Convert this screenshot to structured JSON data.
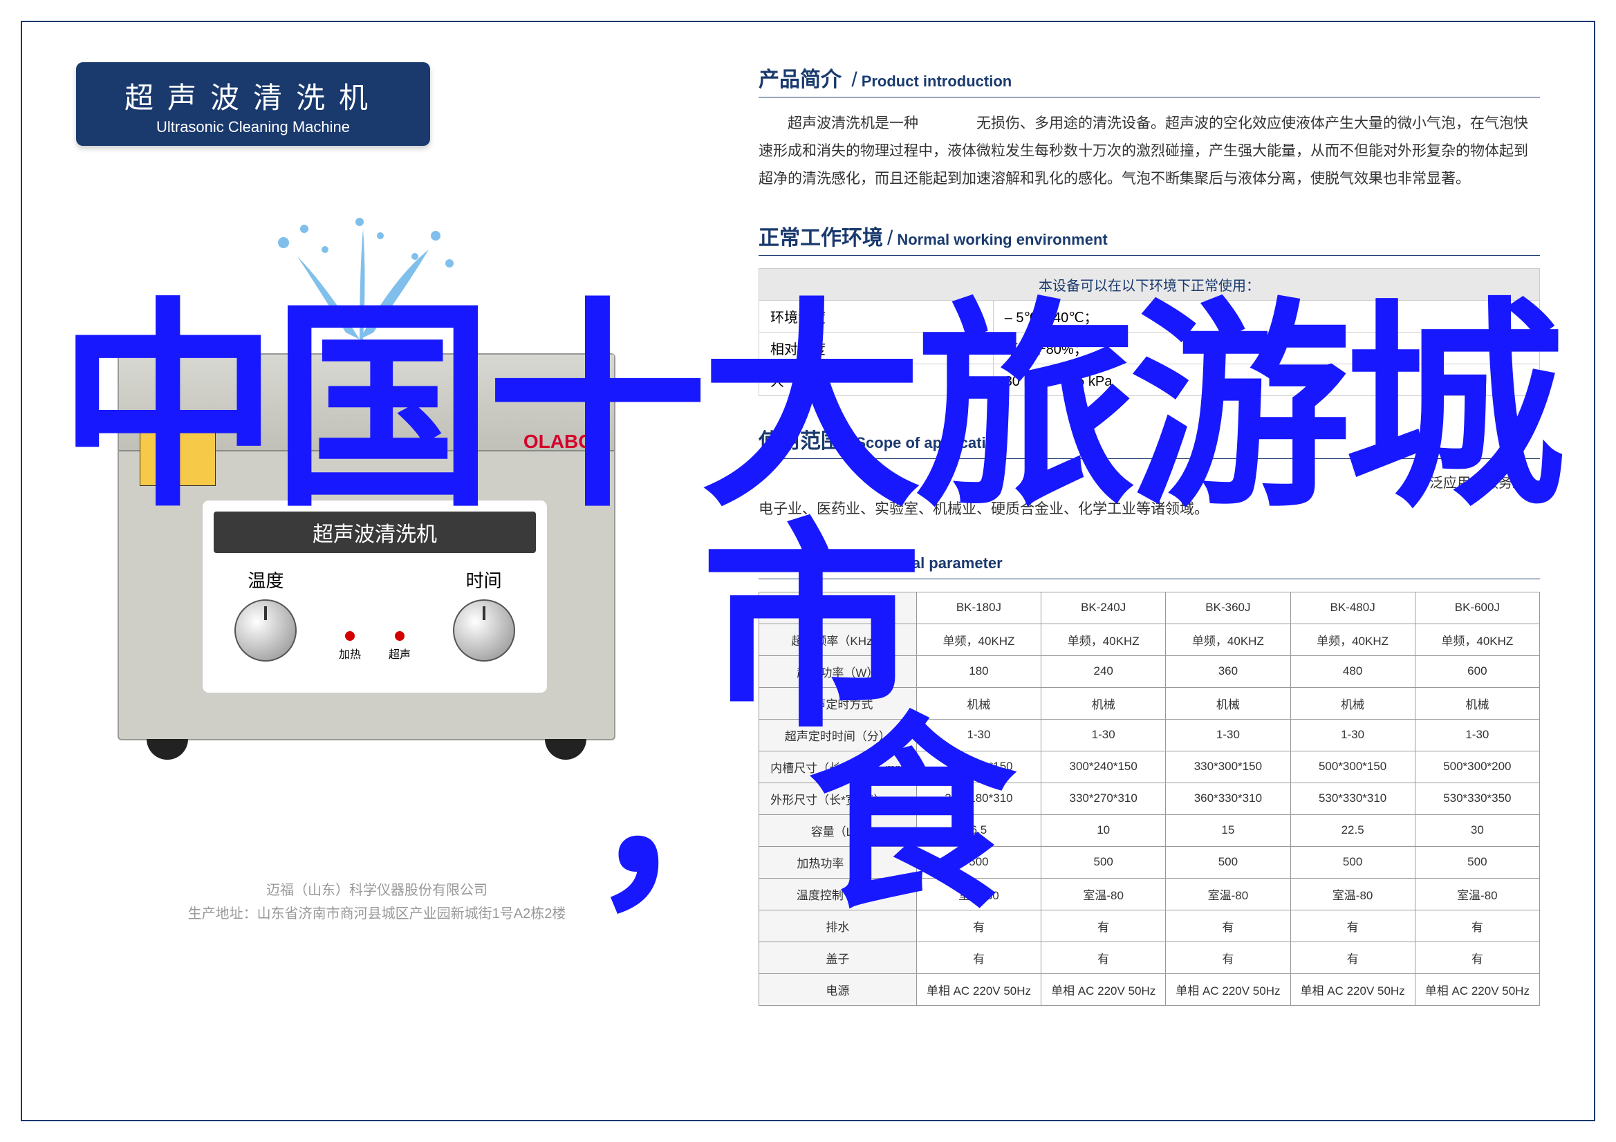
{
  "banner": {
    "title_cn": "超声波清洗机",
    "title_en": "Ultrasonic Cleaning Machine"
  },
  "product_panel": {
    "brand": "OLABO",
    "panel_title": "超声波清洗机",
    "knob1_label": "温度",
    "knob2_label": "时间",
    "led1_label": "加热",
    "led2_label": "超声"
  },
  "footer": {
    "line1": "迈福（山东）科学仪器股份有限公司",
    "line2": "生产地址：山东省济南市商河县城区产业园新城街1号A2栋2楼"
  },
  "intro": {
    "heading_cn": "产品简介",
    "heading_en": "Product introduction",
    "body": "超声波清洗机是一种　　　　无损伤、多用途的清洗设备。超声波的空化效应使液体产生大量的微小气泡，在气泡快速形成和消失的物理过程中，液体微粒发生每秒数十万次的激烈碰撞，产生强大能量，从而不但能对外形复杂的物体起到超净的清洗感化，而且还能起到加速溶解和乳化的感化。气泡不断集聚后与液体分离，使脱气效果也非常显著。"
  },
  "environment": {
    "heading_cn": "正常工作环境",
    "heading_en": "Normal working environment",
    "header_row": "本设备可以在以下环境下正常使用：",
    "rows": [
      {
        "label": "环境温度",
        "value": "– 5℃～40℃；"
      },
      {
        "label": "相对湿度",
        "value": "不大于80%；"
      },
      {
        "label": "大气压力",
        "value": "80 kPa～106 kPa"
      }
    ]
  },
  "scope": {
    "heading_cn": "使用范围",
    "heading_en": "Scope of application",
    "right_text": "广泛应用于服务业、",
    "body": "电子业、医药业、实验室、机械业、硬质合金业、化学工业等诸领域。"
  },
  "specs": {
    "heading_cn": "技术参数",
    "heading_en": "Technical parameter",
    "col_head": "项目",
    "models": [
      "BK-180J",
      "BK-240J",
      "BK-360J",
      "BK-480J",
      "BK-600J"
    ],
    "rows": [
      {
        "label": "超声频率（KHz）",
        "values": [
          "单频，40KHZ",
          "单频，40KHZ",
          "单频，40KHZ",
          "单频，40KHZ",
          "单频，40KHZ"
        ]
      },
      {
        "label": "超声功率（W）",
        "values": [
          "180",
          "240",
          "360",
          "480",
          "600"
        ]
      },
      {
        "label": "超声定时方式",
        "values": [
          "机械",
          "机械",
          "机械",
          "机械",
          "机械"
        ]
      },
      {
        "label": "超声定时时间（分）",
        "values": [
          "1-30",
          "1-30",
          "1-30",
          "1-30",
          "1-30"
        ]
      },
      {
        "label": "内槽尺寸（长*宽*高）mm",
        "values": [
          "300*150*150",
          "300*240*150",
          "330*300*150",
          "500*300*150",
          "500*300*200"
        ]
      },
      {
        "label": "外形尺寸（长*宽*高）mm",
        "values": [
          "330*180*310",
          "330*270*310",
          "360*330*310",
          "530*330*310",
          "530*330*350"
        ]
      },
      {
        "label": "容量（L）",
        "values": [
          "6.5",
          "10",
          "15",
          "22.5",
          "30"
        ]
      },
      {
        "label": "加热功率（W）",
        "values": [
          "500",
          "500",
          "500",
          "500",
          "500"
        ]
      },
      {
        "label": "温度控制（℃）",
        "values": [
          "室温-80",
          "室温-80",
          "室温-80",
          "室温-80",
          "室温-80"
        ]
      },
      {
        "label": "排水",
        "values": [
          "有",
          "有",
          "有",
          "有",
          "有"
        ]
      },
      {
        "label": "盖子",
        "values": [
          "有",
          "有",
          "有",
          "有",
          "有"
        ]
      },
      {
        "label": "电源",
        "values": [
          "单相 AC  220V  50Hz",
          "单相 AC  220V  50Hz",
          "单相 AC  220V  50Hz",
          "单相 AC  220V  50Hz",
          "单相 AC  220V  50Hz"
        ]
      }
    ]
  },
  "overlay": {
    "line1": "中国十大旅游城市",
    "line2": "，食"
  },
  "colors": {
    "brand_blue": "#1a3a6e",
    "overlay_blue": "#1818ff",
    "logo_red": "#d4002a"
  }
}
